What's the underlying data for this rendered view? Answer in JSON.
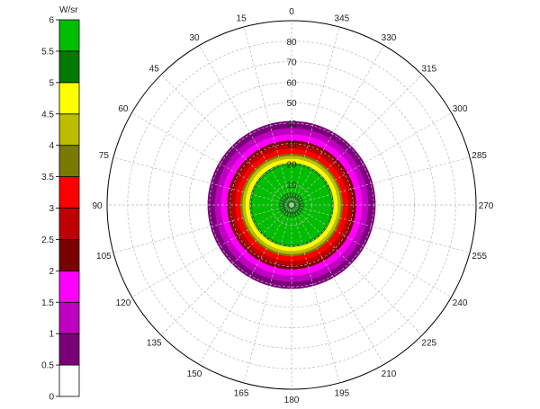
{
  "chart_data": {
    "type": "polar-contour",
    "colorbar": {
      "unit": "W/sr",
      "ticks": [
        "0",
        "0.5",
        "1",
        "1.5",
        "2",
        "2.5",
        "3",
        "3.5",
        "4",
        "4.5",
        "5",
        "5.5",
        "6"
      ],
      "bands": [
        {
          "from": 0,
          "to": 0.5,
          "color": "#ffffff"
        },
        {
          "from": 0.5,
          "to": 1,
          "color": "#7a007a"
        },
        {
          "from": 1,
          "to": 1.5,
          "color": "#c000c0"
        },
        {
          "from": 1.5,
          "to": 2,
          "color": "#ff00ff"
        },
        {
          "from": 2,
          "to": 2.5,
          "color": "#7a0000"
        },
        {
          "from": 2.5,
          "to": 3,
          "color": "#c00000"
        },
        {
          "from": 3,
          "to": 3.5,
          "color": "#ff0000"
        },
        {
          "from": 3.5,
          "to": 4,
          "color": "#7a7a00"
        },
        {
          "from": 4,
          "to": 4.5,
          "color": "#bdbd00"
        },
        {
          "from": 4.5,
          "to": 5,
          "color": "#ffff00"
        },
        {
          "from": 5,
          "to": 5.5,
          "color": "#007a00"
        },
        {
          "from": 5.5,
          "to": 6,
          "color": "#00bd00"
        }
      ]
    },
    "radial_axis": {
      "range": [
        0,
        90
      ],
      "tick_labels": [
        "10",
        "20",
        "30",
        "40",
        "50",
        "60",
        "70",
        "80"
      ],
      "tick_values": [
        10,
        20,
        30,
        40,
        50,
        60,
        70,
        80
      ]
    },
    "angular_axis": {
      "direction": "counterclockwise",
      "zero": "top",
      "tick_labels": [
        "0",
        "15",
        "30",
        "45",
        "60",
        "75",
        "90",
        "105",
        "120",
        "135",
        "150",
        "165",
        "180",
        "195",
        "210",
        "225",
        "240",
        "255",
        "270",
        "285",
        "300",
        "315",
        "330",
        "345"
      ]
    },
    "grid": true,
    "rings": [
      {
        "r_outer": 41,
        "value_band": "0.5-1",
        "color": "#7a007a"
      },
      {
        "r_outer": 37.5,
        "value_band": "1-1.5",
        "color": "#c000c0"
      },
      {
        "r_outer": 34.5,
        "value_band": "1.5-2",
        "color": "#ff00ff"
      },
      {
        "r_outer": 31.5,
        "value_band": "2-2.5",
        "color": "#7a0000"
      },
      {
        "r_outer": 29.5,
        "value_band": "2.5-3",
        "color": "#c00000"
      },
      {
        "r_outer": 27.5,
        "value_band": "3-3.5",
        "color": "#ff0000"
      },
      {
        "r_outer": 25,
        "value_band": "3.5-4",
        "color": "#7a7a00"
      },
      {
        "r_outer": 24,
        "value_band": "4-4.5",
        "color": "#bdbd00"
      },
      {
        "r_outer": 22.5,
        "value_band": "4.5-5",
        "color": "#ffff00"
      },
      {
        "r_outer": 20.5,
        "value_band": "5-5.5",
        "color": "#007a00"
      },
      {
        "r_outer": 19.5,
        "value_band": "5.5-6",
        "color": "#00bd00"
      },
      {
        "r_outer": 6,
        "value_band": "5-5.5",
        "color": "#007a00"
      }
    ]
  }
}
